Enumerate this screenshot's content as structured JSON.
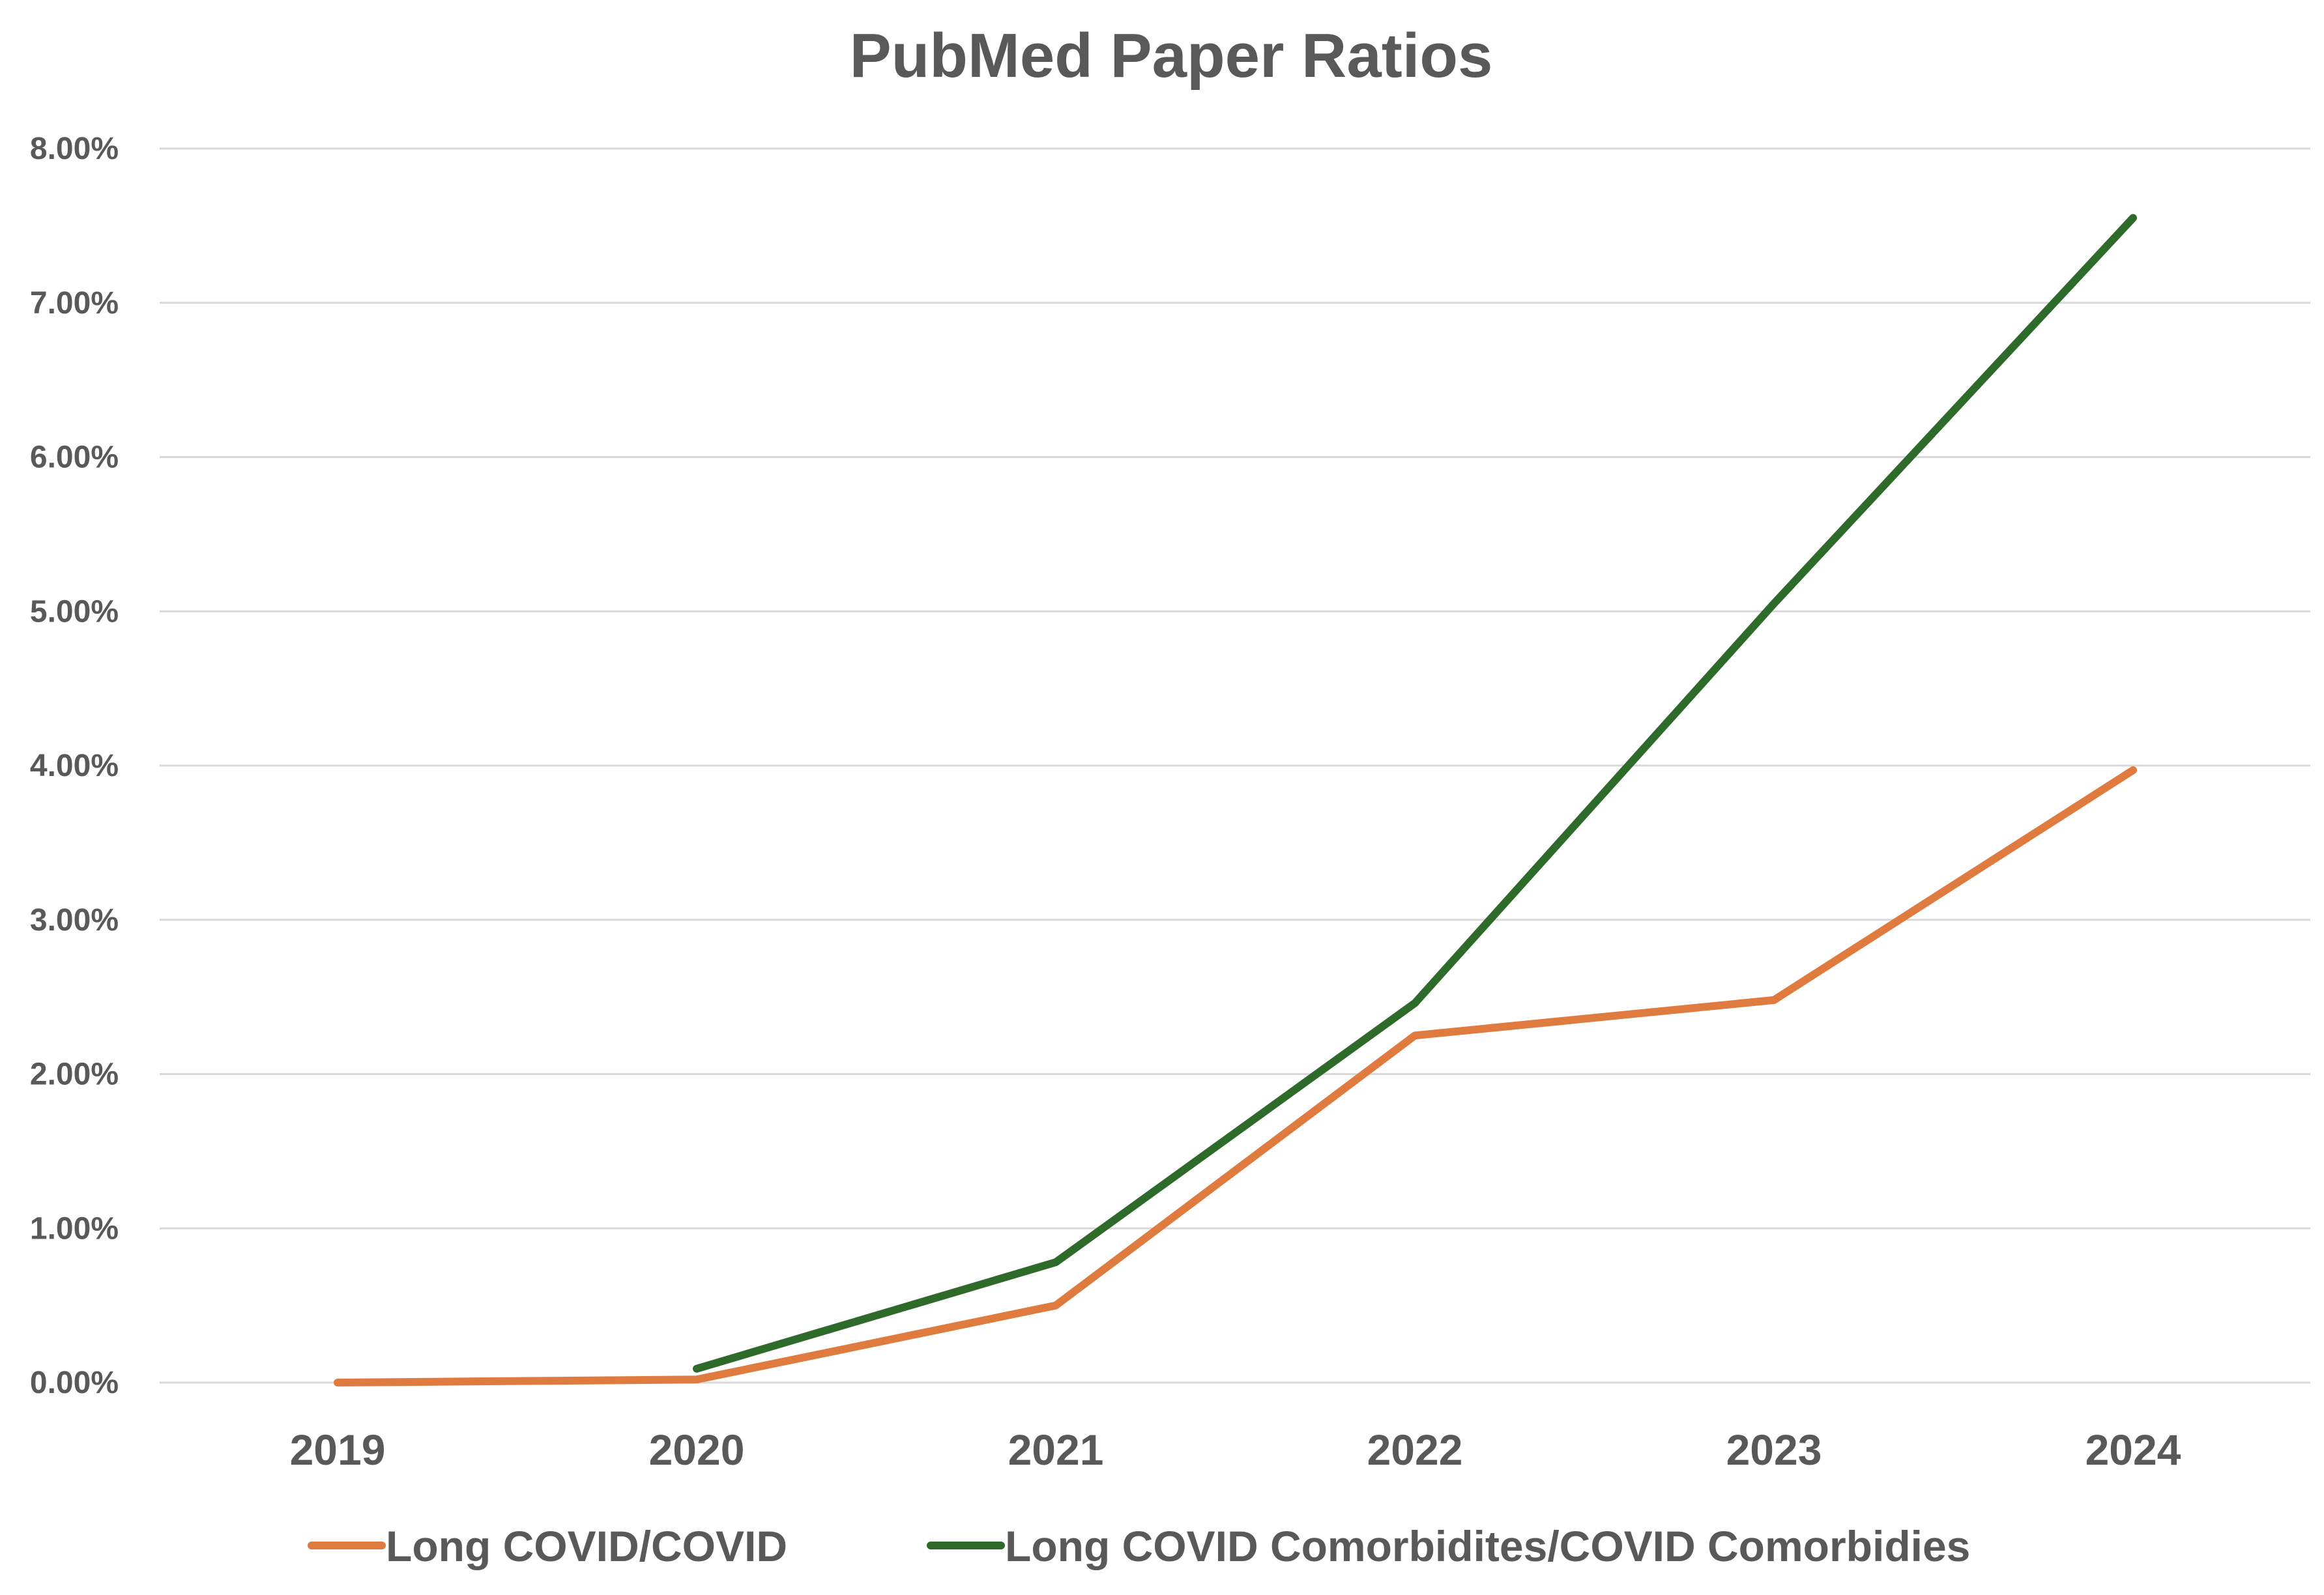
{
  "chart_data": {
    "type": "line",
    "title": "PubMed Paper Ratios",
    "xlabel": "",
    "ylabel": "",
    "categories": [
      "2019",
      "2020",
      "2021",
      "2022",
      "2023",
      "2024"
    ],
    "y_ticks": [
      "0.00%",
      "1.00%",
      "2.00%",
      "3.00%",
      "4.00%",
      "5.00%",
      "6.00%",
      "7.00%",
      "8.00%"
    ],
    "ylim": [
      0,
      8
    ],
    "y_unit": "percent",
    "grid": true,
    "legend_position": "bottom",
    "series": [
      {
        "name": "Long COVID/COVID",
        "color": "#e07b3f",
        "values": [
          0.0,
          0.02,
          0.5,
          2.25,
          2.48,
          3.97
        ]
      },
      {
        "name": "Long COVID Comorbidites/COVID Comorbidies",
        "color": "#2e6b2a",
        "values": [
          null,
          0.09,
          0.78,
          2.46,
          5.05,
          7.55
        ]
      }
    ]
  }
}
